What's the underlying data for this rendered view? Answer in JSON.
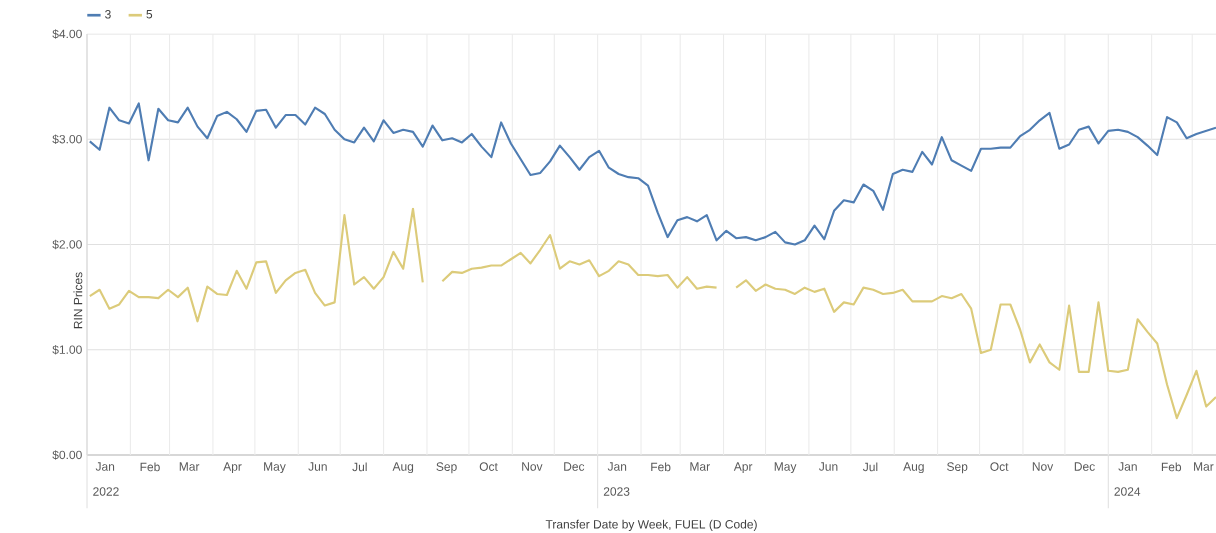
{
  "chart_data": {
    "type": "line",
    "xlabel": "Transfer Date by Week, FUEL (D Code)",
    "ylabel": "RIN Prices",
    "x": [
      "2022-01-03",
      "2022-01-10",
      "2022-01-17",
      "2022-01-24",
      "2022-01-31",
      "2022-02-07",
      "2022-02-14",
      "2022-02-21",
      "2022-02-28",
      "2022-03-07",
      "2022-03-14",
      "2022-03-21",
      "2022-03-28",
      "2022-04-04",
      "2022-04-11",
      "2022-04-18",
      "2022-04-25",
      "2022-05-02",
      "2022-05-09",
      "2022-05-16",
      "2022-05-23",
      "2022-05-30",
      "2022-06-06",
      "2022-06-13",
      "2022-06-20",
      "2022-06-27",
      "2022-07-04",
      "2022-07-11",
      "2022-07-18",
      "2022-07-25",
      "2022-08-01",
      "2022-08-08",
      "2022-08-15",
      "2022-08-22",
      "2022-08-29",
      "2022-09-05",
      "2022-09-12",
      "2022-09-19",
      "2022-09-26",
      "2022-10-03",
      "2022-10-10",
      "2022-10-17",
      "2022-10-24",
      "2022-10-31",
      "2022-11-07",
      "2022-11-14",
      "2022-11-21",
      "2022-11-28",
      "2022-12-05",
      "2022-12-12",
      "2022-12-19",
      "2022-12-26",
      "2023-01-02",
      "2023-01-09",
      "2023-01-16",
      "2023-01-23",
      "2023-01-30",
      "2023-02-06",
      "2023-02-13",
      "2023-02-20",
      "2023-02-27",
      "2023-03-06",
      "2023-03-13",
      "2023-03-20",
      "2023-03-27",
      "2023-04-03",
      "2023-04-10",
      "2023-04-17",
      "2023-04-24",
      "2023-05-01",
      "2023-05-08",
      "2023-05-15",
      "2023-05-22",
      "2023-05-29",
      "2023-06-05",
      "2023-06-12",
      "2023-06-19",
      "2023-06-26",
      "2023-07-03",
      "2023-07-10",
      "2023-07-17",
      "2023-07-24",
      "2023-07-31",
      "2023-08-07",
      "2023-08-14",
      "2023-08-21",
      "2023-08-28",
      "2023-09-04",
      "2023-09-11",
      "2023-09-18",
      "2023-09-25",
      "2023-10-02",
      "2023-10-09",
      "2023-10-16",
      "2023-10-23",
      "2023-10-30",
      "2023-11-06",
      "2023-11-13",
      "2023-11-20",
      "2023-11-27",
      "2023-12-04",
      "2023-12-11",
      "2023-12-18",
      "2023-12-25",
      "2024-01-01",
      "2024-01-08",
      "2024-01-15",
      "2024-01-22",
      "2024-01-29",
      "2024-02-05",
      "2024-02-12",
      "2024-02-19",
      "2024-02-26",
      "2024-03-04",
      "2024-03-11",
      "2024-03-18"
    ],
    "series": [
      {
        "name": "3",
        "color": "#4f7db3",
        "values": [
          2.98,
          2.9,
          3.3,
          3.18,
          3.15,
          3.34,
          2.8,
          3.29,
          3.18,
          3.16,
          3.3,
          3.12,
          3.01,
          3.22,
          3.26,
          3.19,
          3.07,
          3.27,
          3.28,
          3.11,
          3.23,
          3.23,
          3.14,
          3.3,
          3.24,
          3.09,
          3.0,
          2.97,
          3.11,
          2.98,
          3.18,
          3.06,
          3.09,
          3.07,
          2.93,
          3.13,
          2.99,
          3.01,
          2.97,
          3.05,
          2.93,
          2.83,
          3.16,
          2.96,
          2.81,
          2.66,
          2.68,
          2.79,
          2.94,
          2.83,
          2.71,
          2.83,
          2.89,
          2.73,
          2.67,
          2.64,
          2.63,
          2.56,
          2.3,
          2.07,
          2.23,
          2.26,
          2.22,
          2.28,
          2.04,
          2.13,
          2.06,
          2.07,
          2.04,
          2.07,
          2.12,
          2.02,
          2.0,
          2.04,
          2.18,
          2.05,
          2.32,
          2.42,
          2.4,
          2.57,
          2.51,
          2.33,
          2.67,
          2.71,
          2.69,
          2.88,
          2.76,
          3.02,
          2.8,
          2.75,
          2.7,
          2.91,
          2.91,
          2.92,
          2.92,
          3.03,
          3.09,
          3.18,
          3.25,
          2.91,
          2.95,
          3.09,
          3.12,
          2.96,
          3.08,
          3.09,
          3.07,
          3.02,
          2.94,
          2.85,
          3.21,
          3.16,
          3.01,
          3.05,
          3.08,
          3.11
        ]
      },
      {
        "name": "5",
        "color": "#dccb7a",
        "values": [
          1.51,
          1.57,
          1.39,
          1.43,
          1.56,
          1.5,
          1.5,
          1.49,
          1.57,
          1.5,
          1.59,
          1.27,
          1.6,
          1.53,
          1.52,
          1.75,
          1.58,
          1.83,
          1.84,
          1.54,
          1.66,
          1.73,
          1.76,
          1.54,
          1.42,
          1.45,
          2.28,
          1.62,
          1.69,
          1.58,
          1.69,
          1.93,
          1.77,
          2.34,
          1.64,
          null,
          1.65,
          1.74,
          1.73,
          1.77,
          1.78,
          1.8,
          1.8,
          1.86,
          1.92,
          1.82,
          1.95,
          2.09,
          1.77,
          1.84,
          1.81,
          1.85,
          1.7,
          1.75,
          1.84,
          1.81,
          1.71,
          1.71,
          1.7,
          1.71,
          1.59,
          1.69,
          1.58,
          1.6,
          1.59,
          null,
          1.59,
          1.66,
          1.56,
          1.62,
          1.58,
          1.57,
          1.53,
          1.59,
          1.55,
          1.58,
          1.36,
          1.45,
          1.43,
          1.59,
          1.57,
          1.53,
          1.54,
          1.57,
          1.46,
          1.46,
          1.46,
          1.51,
          1.49,
          1.53,
          1.39,
          0.97,
          1.0,
          1.43,
          1.43,
          1.19,
          0.88,
          1.05,
          0.88,
          0.81,
          1.42,
          0.79,
          0.79,
          1.45,
          0.8,
          0.79,
          0.81,
          1.29,
          1.17,
          1.06,
          0.67,
          0.35,
          0.57,
          0.8,
          0.46,
          0.55
        ]
      }
    ],
    "xlim": [
      "2022-01-01",
      "2024-03-18"
    ],
    "xticks": [
      {
        "value": "2022-01-01",
        "label": null
      },
      {
        "value": "2022-02-01",
        "label": null
      },
      {
        "value": "2022-03-01",
        "label": null
      },
      {
        "value": "2022-04-01",
        "label": null
      },
      {
        "value": "2022-05-01",
        "label": null
      },
      {
        "value": "2022-06-01",
        "label": null
      },
      {
        "value": "2022-07-01",
        "label": null
      },
      {
        "value": "2022-08-01",
        "label": null
      },
      {
        "value": "2022-09-01",
        "label": null
      },
      {
        "value": "2022-10-01",
        "label": null
      },
      {
        "value": "2022-11-01",
        "label": null
      },
      {
        "value": "2022-12-01",
        "label": null
      },
      {
        "value": "2023-01-01",
        "label": null
      },
      {
        "value": "2023-02-01",
        "label": null
      },
      {
        "value": "2023-03-01",
        "label": null
      },
      {
        "value": "2023-04-01",
        "label": null
      },
      {
        "value": "2023-05-01",
        "label": null
      },
      {
        "value": "2023-06-01",
        "label": null
      },
      {
        "value": "2023-07-01",
        "label": null
      },
      {
        "value": "2023-08-01",
        "label": null
      },
      {
        "value": "2023-09-01",
        "label": null
      },
      {
        "value": "2023-10-01",
        "label": null
      },
      {
        "value": "2023-11-01",
        "label": null
      },
      {
        "value": "2023-12-01",
        "label": null
      },
      {
        "value": "2024-01-01",
        "label": null
      },
      {
        "value": "2024-02-01",
        "label": null
      },
      {
        "value": "2024-03-01",
        "label": null
      },
      {
        "value": "2022-01-14",
        "label": "Jan"
      },
      {
        "value": "2022-02-15",
        "label": "Feb"
      },
      {
        "value": "2022-03-15",
        "label": "Mar"
      },
      {
        "value": "2022-04-15",
        "label": "Apr"
      },
      {
        "value": "2022-05-15",
        "label": "May"
      },
      {
        "value": "2022-06-15",
        "label": "Jun"
      },
      {
        "value": "2022-07-15",
        "label": "Jul"
      },
      {
        "value": "2022-08-15",
        "label": "Aug"
      },
      {
        "value": "2022-09-15",
        "label": "Sep"
      },
      {
        "value": "2022-10-15",
        "label": "Oct"
      },
      {
        "value": "2022-11-15",
        "label": "Nov"
      },
      {
        "value": "2022-12-15",
        "label": "Dec"
      },
      {
        "value": "2023-01-15",
        "label": "Jan"
      },
      {
        "value": "2023-02-15",
        "label": "Feb"
      },
      {
        "value": "2023-03-15",
        "label": "Mar"
      },
      {
        "value": "2023-04-15",
        "label": "Apr"
      },
      {
        "value": "2023-05-15",
        "label": "May"
      },
      {
        "value": "2023-06-15",
        "label": "Jun"
      },
      {
        "value": "2023-07-15",
        "label": "Jul"
      },
      {
        "value": "2023-08-15",
        "label": "Aug"
      },
      {
        "value": "2023-09-15",
        "label": "Sep"
      },
      {
        "value": "2023-10-15",
        "label": "Oct"
      },
      {
        "value": "2023-11-15",
        "label": "Nov"
      },
      {
        "value": "2023-12-15",
        "label": "Dec"
      },
      {
        "value": "2024-01-15",
        "label": "Jan"
      },
      {
        "value": "2024-02-15",
        "label": "Feb"
      },
      {
        "value": "2024-03-09",
        "label": "Mar"
      }
    ],
    "annotations": [
      "2022",
      "2023",
      "2024"
    ],
    "ylim": [
      0,
      4
    ],
    "yticks": [
      {
        "value": 0,
        "label": "$0.00"
      },
      {
        "value": 1,
        "label": "$1.00"
      },
      {
        "value": 2,
        "label": "$2.00"
      },
      {
        "value": 3,
        "label": "$3.00"
      },
      {
        "value": 4,
        "label": "$4.00"
      }
    ],
    "grid": true,
    "legend": "top left",
    "line_style": "solid"
  }
}
